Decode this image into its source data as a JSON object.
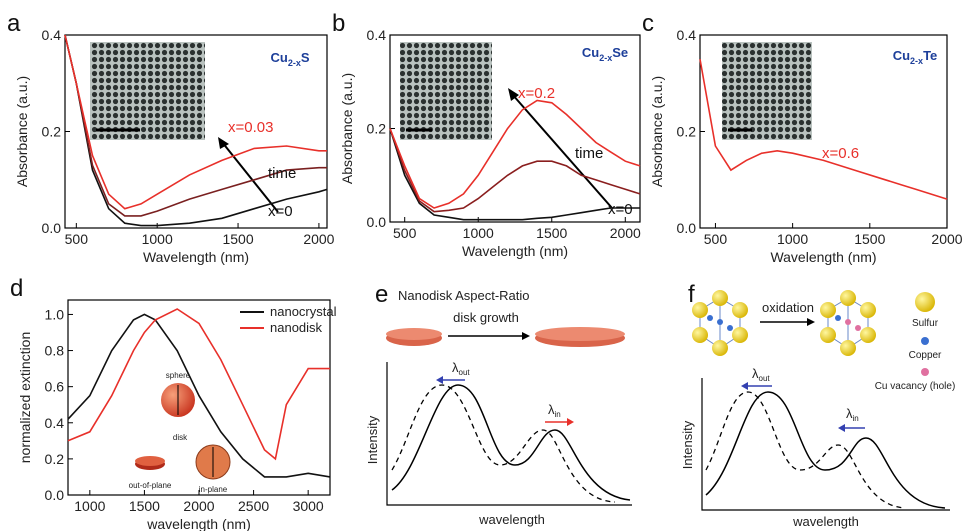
{
  "chart_data": [
    {
      "panel": "a",
      "type": "line",
      "formula": [
        "Cu",
        "2-x",
        "S"
      ],
      "xlabel": "Wavelength (nm)",
      "ylabel": "Absorbance (a.u.)",
      "annotations": [
        "x=0.03",
        "time",
        "x=0"
      ],
      "xlim": [
        430,
        2050
      ],
      "ylim": [
        0,
        0.4
      ],
      "xticks": [
        500,
        1000,
        1500,
        2000
      ],
      "yticks": [
        {
          "value": 0,
          "label": "0.0"
        },
        0.2,
        0.4
      ],
      "x": [
        430,
        500,
        600,
        700,
        800,
        900,
        1000,
        1200,
        1400,
        1600,
        1800,
        2000,
        2050
      ],
      "series": [
        {
          "color": "#111111",
          "values": [
            0.4,
            0.3,
            0.12,
            0.04,
            0.01,
            0.005,
            0.005,
            0.01,
            0.02,
            0.04,
            0.06,
            0.075,
            0.08
          ]
        },
        {
          "color": "#7a2020",
          "values": [
            0.4,
            0.3,
            0.13,
            0.05,
            0.025,
            0.025,
            0.035,
            0.06,
            0.08,
            0.1,
            0.12,
            0.125,
            0.125
          ]
        },
        {
          "color": "#e8302a",
          "values": [
            0.4,
            0.3,
            0.15,
            0.07,
            0.04,
            0.05,
            0.07,
            0.11,
            0.14,
            0.165,
            0.17,
            0.16,
            0.16
          ]
        }
      ]
    },
    {
      "panel": "b",
      "type": "line",
      "formula": [
        "Cu",
        "2-x",
        "Se"
      ],
      "xlabel": "Wavelength (nm)",
      "ylabel": "Absorbance (a.u.)",
      "annotations": [
        "x=0.2",
        "time",
        "x=0"
      ],
      "xlim": [
        400,
        2100
      ],
      "ylim": [
        0,
        0.4
      ],
      "xticks": [
        500,
        1000,
        1500,
        2000
      ],
      "yticks": [
        {
          "value": 0,
          "label": "0.0"
        },
        0.2,
        0.4
      ],
      "x": [
        400,
        500,
        600,
        700,
        800,
        900,
        1000,
        1100,
        1200,
        1300,
        1400,
        1500,
        1600,
        1700,
        1800,
        1900,
        2000,
        2100
      ],
      "series": [
        {
          "color": "#111111",
          "values": [
            0.2,
            0.1,
            0.04,
            0.015,
            0.01,
            0.005,
            0.005,
            0.005,
            0.005,
            0.005,
            0.008,
            0.01,
            0.015,
            0.02,
            0.025,
            0.03,
            0.03,
            0.03
          ]
        },
        {
          "color": "#8a1e1e",
          "values": [
            0.2,
            0.11,
            0.045,
            0.022,
            0.025,
            0.03,
            0.05,
            0.075,
            0.1,
            0.12,
            0.13,
            0.13,
            0.12,
            0.1,
            0.09,
            0.08,
            0.07,
            0.06
          ]
        },
        {
          "color": "#e8302a",
          "values": [
            0.2,
            0.12,
            0.05,
            0.03,
            0.04,
            0.06,
            0.1,
            0.15,
            0.2,
            0.24,
            0.26,
            0.255,
            0.23,
            0.2,
            0.17,
            0.15,
            0.13,
            0.12
          ]
        }
      ]
    },
    {
      "panel": "c",
      "type": "line",
      "formula": [
        "Cu",
        "2-x",
        "Te"
      ],
      "xlabel": "Wavelength (nm)",
      "ylabel": "Absorbance (a.u.)",
      "annotations": [
        "x=0.6"
      ],
      "xlim": [
        400,
        2000
      ],
      "ylim": [
        0,
        0.4
      ],
      "xticks": [
        500,
        1000,
        1500,
        2000
      ],
      "yticks": [
        {
          "value": 0,
          "label": "0.0"
        },
        0.2,
        0.4
      ],
      "x": [
        400,
        500,
        600,
        700,
        800,
        900,
        1000,
        1200,
        1400,
        1600,
        1700,
        1800,
        2000
      ],
      "series": [
        {
          "color": "#e8302a",
          "values": [
            0.35,
            0.17,
            0.12,
            0.14,
            0.155,
            0.16,
            0.155,
            0.14,
            0.12,
            0.1,
            0.09,
            0.08,
            0.06
          ]
        }
      ]
    },
    {
      "panel": "d",
      "type": "line",
      "xlabel": "wavelength (nm)",
      "ylabel": "normalized extinction",
      "legend": "upper right",
      "insets": [
        "sphere",
        "disk",
        "out-of-plane",
        "in-plane"
      ],
      "xlim": [
        800,
        3200
      ],
      "ylim": [
        0,
        1.08
      ],
      "xticks": [
        1000,
        1500,
        2000,
        2500,
        3000
      ],
      "yticks": [
        {
          "value": 0,
          "label": "0.0"
        },
        0.2,
        0.4,
        0.6,
        0.8,
        {
          "value": 1,
          "label": "1.0"
        }
      ],
      "x": [
        800,
        1000,
        1200,
        1400,
        1500,
        1600,
        1800,
        2000,
        2200,
        2400,
        2600,
        2700,
        2800,
        3000,
        3200
      ],
      "series": [
        {
          "name": "nanocrystal",
          "color": "#111111",
          "values": [
            0.42,
            0.55,
            0.8,
            0.97,
            1.0,
            0.97,
            0.8,
            0.55,
            0.35,
            0.2,
            0.1,
            0.1,
            0.1,
            0.12,
            0.1
          ]
        },
        {
          "name": "nanodisk",
          "color": "#e8302a",
          "values": [
            0.3,
            0.35,
            0.55,
            0.8,
            0.9,
            0.97,
            1.03,
            0.95,
            0.75,
            0.5,
            0.25,
            0.2,
            0.5,
            0.7,
            0.7
          ]
        }
      ]
    },
    {
      "panel": "e",
      "type": "schematic",
      "title": "Nanodisk Aspect-Ratio",
      "arrow_label": "disk growth",
      "peaks": [
        {
          "symbol": "λ",
          "sub": "out"
        },
        {
          "symbol": "λ",
          "sub": "in"
        }
      ],
      "ylabel": "Intensity",
      "xlabel": "wavelength"
    },
    {
      "panel": "f",
      "type": "schematic",
      "arrow_label": "oxidation",
      "key": [
        "Sulfur",
        "Copper",
        "Cu vacancy (hole)"
      ],
      "peaks": [
        {
          "symbol": "λ",
          "sub": "out"
        },
        {
          "symbol": "λ",
          "sub": "in"
        }
      ],
      "ylabel": "Intensity",
      "xlabel": "wavelength"
    }
  ]
}
